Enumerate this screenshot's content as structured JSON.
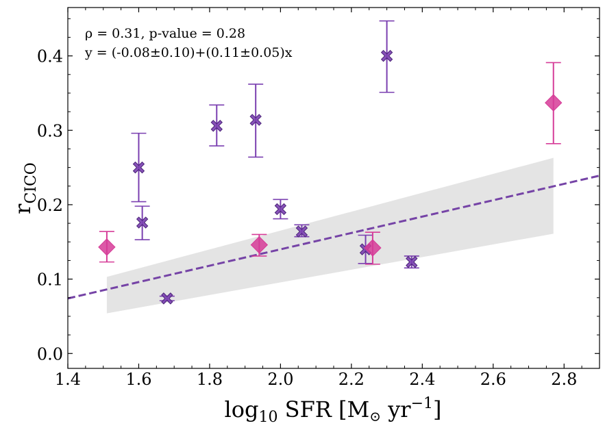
{
  "chart_data": {
    "type": "scatter",
    "title": "",
    "xlabel": {
      "main": "log",
      "sub": "10",
      "rest": " SFR [M",
      "odot": "⊙",
      "unit": " yr",
      "sup": "−1",
      "close": "]"
    },
    "ylabel": {
      "main": "r",
      "sub": "CICO"
    },
    "xlim": [
      1.4,
      2.9
    ],
    "ylim": [
      -0.02,
      0.465
    ],
    "xticks": [
      1.4,
      1.6,
      1.8,
      2.0,
      2.2,
      2.4,
      2.6,
      2.8
    ],
    "xtick_labels": [
      "1.4",
      "1.6",
      "1.8",
      "2.0",
      "2.2",
      "2.4",
      "2.6",
      "2.8"
    ],
    "yticks": [
      0.0,
      0.1,
      0.2,
      0.3,
      0.4
    ],
    "ytick_labels": [
      "0.0",
      "0.1",
      "0.2",
      "0.3",
      "0.4"
    ],
    "annotations": [
      "ρ = 0.31, p-value = 0.28",
      "y = (-0.08±0.10)+(0.11±0.05)x"
    ],
    "fit": {
      "intercept": -0.08,
      "slope": 0.11,
      "color": "#7543a6"
    },
    "confidence_band": {
      "x": [
        1.51,
        2.77
      ],
      "lower": [
        0.054,
        0.161
      ],
      "upper": [
        0.103,
        0.263
      ],
      "color": "#e4e4e4"
    },
    "series": [
      {
        "name": "crosses",
        "marker": "X",
        "color": "#7a3fb0",
        "points": [
          {
            "x": 1.6,
            "y": 0.25,
            "lo": 0.204,
            "hi": 0.296
          },
          {
            "x": 1.61,
            "y": 0.176,
            "lo": 0.153,
            "hi": 0.198
          },
          {
            "x": 1.68,
            "y": 0.074,
            "lo": 0.071,
            "hi": 0.077
          },
          {
            "x": 1.82,
            "y": 0.306,
            "lo": 0.279,
            "hi": 0.334
          },
          {
            "x": 1.93,
            "y": 0.314,
            "lo": 0.264,
            "hi": 0.362
          },
          {
            "x": 2.0,
            "y": 0.194,
            "lo": 0.181,
            "hi": 0.207
          },
          {
            "x": 2.06,
            "y": 0.164,
            "lo": 0.157,
            "hi": 0.173
          },
          {
            "x": 2.24,
            "y": 0.14,
            "lo": 0.121,
            "hi": 0.159
          },
          {
            "x": 2.3,
            "y": 0.4,
            "lo": 0.351,
            "hi": 0.447
          },
          {
            "x": 2.37,
            "y": 0.123,
            "lo": 0.115,
            "hi": 0.131
          }
        ]
      },
      {
        "name": "diamonds",
        "marker": "D",
        "color": "#d63c98",
        "points": [
          {
            "x": 1.51,
            "y": 0.143,
            "lo": 0.123,
            "hi": 0.164
          },
          {
            "x": 1.94,
            "y": 0.146,
            "lo": 0.131,
            "hi": 0.16
          },
          {
            "x": 2.26,
            "y": 0.142,
            "lo": 0.12,
            "hi": 0.163
          },
          {
            "x": 2.77,
            "y": 0.337,
            "lo": 0.282,
            "hi": 0.391
          }
        ]
      }
    ]
  }
}
